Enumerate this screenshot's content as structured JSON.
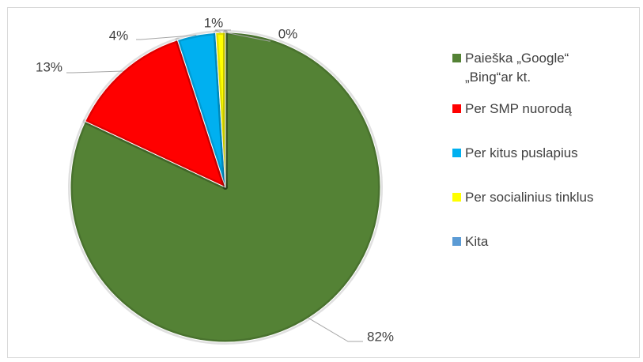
{
  "chart_data": {
    "type": "pie",
    "categories": [
      "Paieška „Google“ „Bing“ar  kt.",
      "Per SMP nuorodą",
      "Per kitus puslapius",
      "Per socialinius tinklus",
      "Kita"
    ],
    "values": [
      82,
      13,
      4,
      1,
      0
    ],
    "value_labels": [
      "82%",
      "13%",
      "4%",
      "1%",
      "0%"
    ],
    "colors": [
      "#548235",
      "#ff0000",
      "#00b0f0",
      "#ffff00",
      "#5b9bd5"
    ],
    "legend": "right"
  }
}
